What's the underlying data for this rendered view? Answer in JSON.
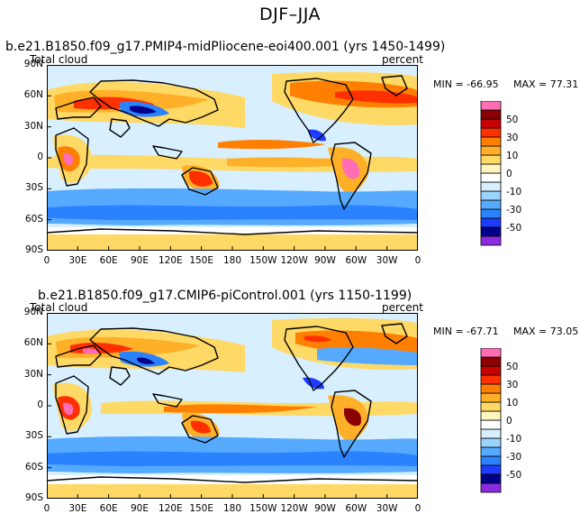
{
  "figure": {
    "title": "DJF–JJA"
  },
  "panels": [
    {
      "title": "b.e21.B1850.f09_g17.PMIP4-midPliocene-eoi400.001 (yrs 1450-1499)",
      "left_label": "Total cloud",
      "right_label": "percent",
      "min_text": "MIN = -66.95",
      "max_text": "MAX =  77.31"
    },
    {
      "title": "b.e21.B1850.f09_g17.CMIP6-piControl.001 (yrs 1150-1199)",
      "left_label": "Total cloud",
      "right_label": "percent",
      "min_text": "MIN = -67.71",
      "max_text": "MAX =  73.05"
    }
  ],
  "chart_data": [
    {
      "type": "heatmap",
      "title": "b.e21.B1850.f09_g17.PMIP4-midPliocene-eoi400.001 (yrs 1450-1499)",
      "variable": "Total cloud",
      "units": "percent",
      "min": -66.95,
      "max": 77.31,
      "x_ticks": [
        "0",
        "30E",
        "60E",
        "90E",
        "120E",
        "150E",
        "180",
        "150W",
        "120W",
        "90W",
        "60W",
        "30W",
        "0"
      ],
      "y_ticks": [
        "90N",
        "60N",
        "30N",
        "0",
        "30S",
        "60S",
        "90S"
      ],
      "colorbar_levels": [
        -60,
        -50,
        -40,
        -30,
        -20,
        -10,
        -5,
        0,
        5,
        10,
        20,
        30,
        40,
        50,
        60
      ],
      "colorbar_labels": [
        "50",
        "30",
        "10",
        "0",
        "-10",
        "-30",
        "-50"
      ],
      "colorbar_colors": [
        "#8a2be2",
        "#00008b",
        "#1e3cff",
        "#2b82ff",
        "#55aaff",
        "#9ad4ff",
        "#d7efff",
        "#ffffff",
        "#fff6bf",
        "#ffd966",
        "#ffb028",
        "#ff7f00",
        "#ff3000",
        "#c80000",
        "#8b0000",
        "#ff6eb4"
      ]
    },
    {
      "type": "heatmap",
      "title": "b.e21.B1850.f09_g17.CMIP6-piControl.001 (yrs 1150-1199)",
      "variable": "Total cloud",
      "units": "percent",
      "min": -67.71,
      "max": 73.05,
      "x_ticks": [
        "0",
        "30E",
        "60E",
        "90E",
        "120E",
        "150E",
        "180",
        "150W",
        "120W",
        "90W",
        "60W",
        "30W",
        "0"
      ],
      "y_ticks": [
        "90N",
        "60N",
        "30N",
        "0",
        "30S",
        "60S",
        "90S"
      ],
      "colorbar_levels": [
        -60,
        -50,
        -40,
        -30,
        -20,
        -10,
        -5,
        0,
        5,
        10,
        20,
        30,
        40,
        50,
        60
      ],
      "colorbar_labels": [
        "50",
        "30",
        "10",
        "0",
        "-10",
        "-30",
        "-50"
      ],
      "colorbar_colors": [
        "#8a2be2",
        "#00008b",
        "#1e3cff",
        "#2b82ff",
        "#55aaff",
        "#9ad4ff",
        "#d7efff",
        "#ffffff",
        "#fff6bf",
        "#ffd966",
        "#ffb028",
        "#ff7f00",
        "#ff3000",
        "#c80000",
        "#8b0000",
        "#ff6eb4"
      ]
    }
  ]
}
